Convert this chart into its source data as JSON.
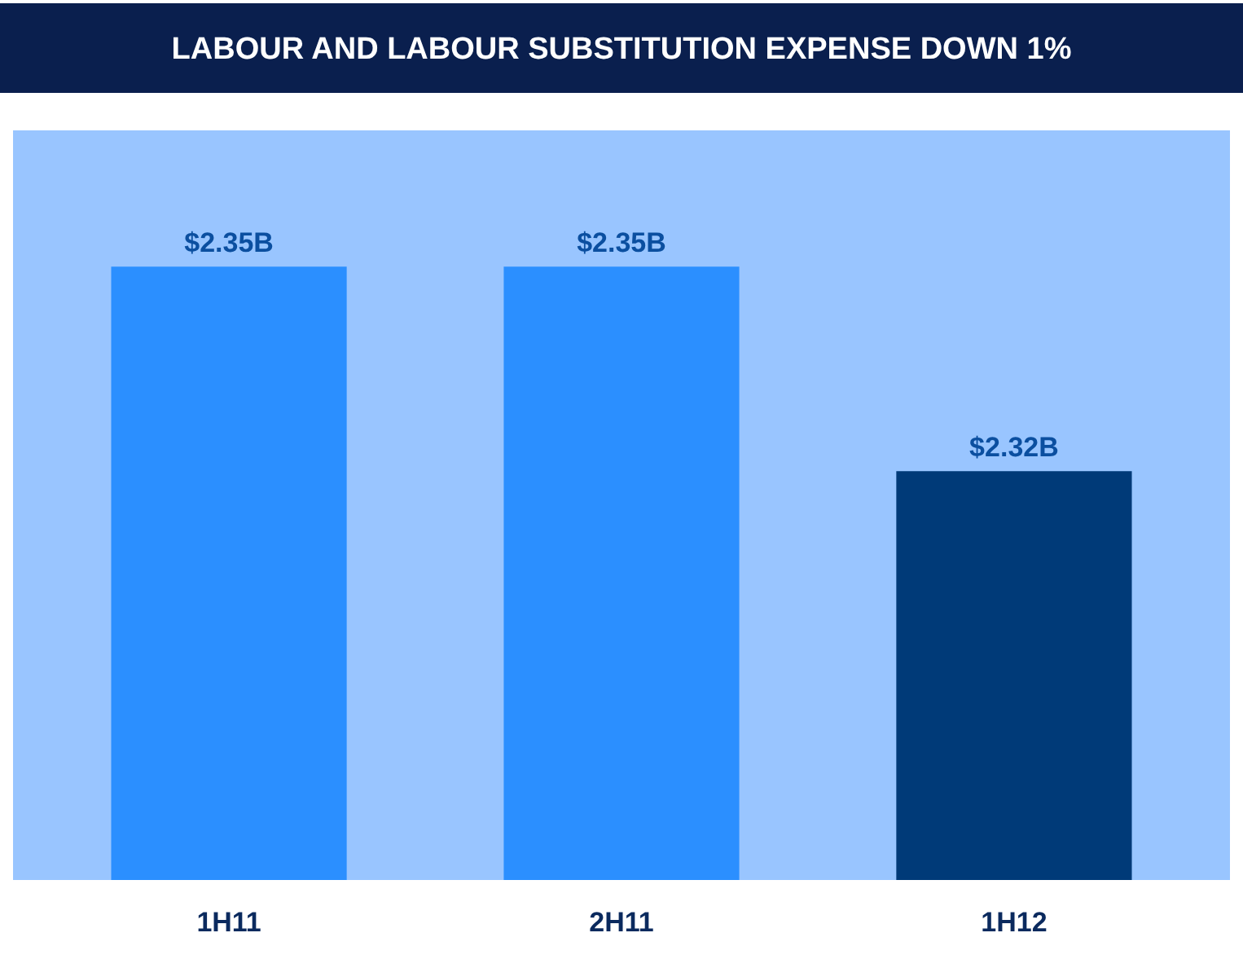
{
  "chart_data": {
    "type": "bar",
    "title": "LABOUR AND LABOUR SUBSTITUTION EXPENSE  DOWN 1%",
    "categories": [
      "1H11",
      "2H11",
      "1H12"
    ],
    "values": [
      2.35,
      2.35,
      2.32
    ],
    "value_labels": [
      "$2.35B",
      "$2.35B",
      "$2.32B"
    ],
    "colors": [
      "#2b8fff",
      "#2b8fff",
      "#003a78"
    ],
    "ylim": [
      2.26,
      2.37
    ],
    "grid": false
  }
}
